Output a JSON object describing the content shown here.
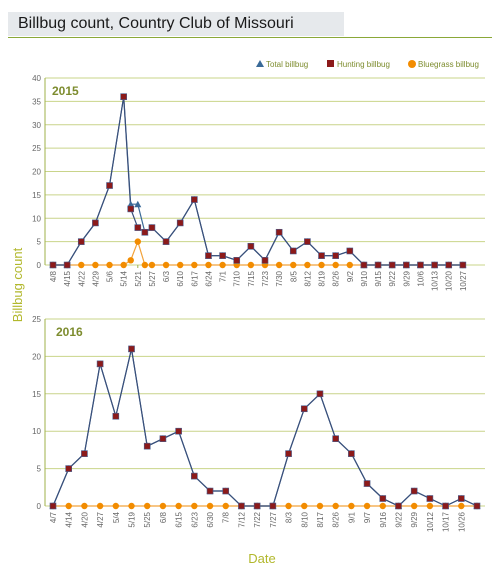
{
  "page": {
    "title": "Billbug count, Country Club of Missouri"
  },
  "colors": {
    "grid": "#c9d48a",
    "axis": "#9fb04a",
    "total": "#3a6a98",
    "hunting": "#8c1a1a",
    "bluegrass": "#f28c00",
    "line": "#3a4f7a",
    "bluegrass_line": "#f2a23a",
    "label_green": "#7d8c2e"
  },
  "chart_data": {
    "type": "line",
    "xlabel": "Date",
    "ylabel": "Billbug count",
    "legend": {
      "placement": "top-right",
      "entries": [
        "Total billbug",
        "Hunting billbug",
        "Bluegrass billbug"
      ]
    },
    "panels": [
      {
        "year": "2015",
        "ylim": [
          0,
          40
        ],
        "yticks": [
          0,
          5,
          10,
          15,
          20,
          25,
          30,
          35,
          40
        ],
        "grid": true,
        "x": [
          "4/8",
          "4/15",
          "4/22",
          "4/29",
          "5/6",
          "5/14",
          "5/21",
          "5/27",
          "6/3",
          "6/10",
          "6/17",
          "6/24",
          "7/1",
          "7/10",
          "7/15",
          "7/23",
          "7/30",
          "8/5",
          "8/12",
          "8/19",
          "8/26",
          "9/2",
          "9/10",
          "9/15",
          "9/22",
          "9/29",
          "10/6",
          "10/13",
          "10/20",
          "10/27"
        ],
        "x_index": [
          0,
          2,
          4,
          6,
          8,
          10,
          12,
          14,
          16,
          18,
          20,
          22,
          24,
          26,
          28,
          30,
          32,
          34,
          36,
          38,
          40,
          42,
          44,
          46,
          48,
          50,
          52,
          54,
          56,
          58
        ],
        "x_slots": 60,
        "series": [
          {
            "name": "Total billbug",
            "points": [
              [
                0,
                0
              ],
              [
                2,
                0
              ],
              [
                4,
                5
              ],
              [
                6,
                9
              ],
              [
                8,
                17
              ],
              [
                10,
                36
              ],
              [
                11,
                13
              ],
              [
                12,
                13
              ],
              [
                13,
                7
              ],
              [
                14,
                8
              ],
              [
                16,
                5
              ],
              [
                18,
                9
              ],
              [
                20,
                14
              ],
              [
                22,
                2
              ],
              [
                24,
                2
              ],
              [
                26,
                1
              ],
              [
                28,
                4
              ],
              [
                30,
                1
              ],
              [
                32,
                7
              ],
              [
                34,
                3
              ],
              [
                36,
                5
              ],
              [
                38,
                2
              ],
              [
                40,
                2
              ],
              [
                42,
                3
              ],
              [
                44,
                0
              ],
              [
                46,
                0
              ],
              [
                48,
                0
              ],
              [
                50,
                0
              ],
              [
                52,
                0
              ],
              [
                54,
                0
              ],
              [
                56,
                0
              ],
              [
                58,
                0
              ]
            ]
          },
          {
            "name": "Hunting billbug",
            "points": [
              [
                0,
                0
              ],
              [
                2,
                0
              ],
              [
                4,
                5
              ],
              [
                6,
                9
              ],
              [
                8,
                17
              ],
              [
                10,
                36
              ],
              [
                11,
                12
              ],
              [
                12,
                8
              ],
              [
                13,
                7
              ],
              [
                14,
                8
              ],
              [
                16,
                5
              ],
              [
                18,
                9
              ],
              [
                20,
                14
              ],
              [
                22,
                2
              ],
              [
                24,
                2
              ],
              [
                26,
                1
              ],
              [
                28,
                4
              ],
              [
                30,
                1
              ],
              [
                32,
                7
              ],
              [
                34,
                3
              ],
              [
                36,
                5
              ],
              [
                38,
                2
              ],
              [
                40,
                2
              ],
              [
                42,
                3
              ],
              [
                44,
                0
              ],
              [
                46,
                0
              ],
              [
                48,
                0
              ],
              [
                50,
                0
              ],
              [
                52,
                0
              ],
              [
                54,
                0
              ],
              [
                56,
                0
              ],
              [
                58,
                0
              ]
            ]
          },
          {
            "name": "Bluegrass billbug",
            "points": [
              [
                0,
                0
              ],
              [
                2,
                0
              ],
              [
                4,
                0
              ],
              [
                6,
                0
              ],
              [
                8,
                0
              ],
              [
                10,
                0
              ],
              [
                11,
                1
              ],
              [
                12,
                5
              ],
              [
                13,
                0
              ],
              [
                14,
                0
              ],
              [
                16,
                0
              ],
              [
                18,
                0
              ],
              [
                20,
                0
              ],
              [
                22,
                0
              ],
              [
                24,
                0
              ],
              [
                26,
                0
              ],
              [
                28,
                0
              ],
              [
                30,
                0
              ],
              [
                32,
                0
              ],
              [
                34,
                0
              ],
              [
                36,
                0
              ],
              [
                38,
                0
              ],
              [
                40,
                0
              ],
              [
                42,
                0
              ],
              [
                44,
                0
              ],
              [
                46,
                0
              ],
              [
                48,
                0
              ],
              [
                50,
                0
              ],
              [
                52,
                0
              ],
              [
                54,
                0
              ],
              [
                56,
                0
              ],
              [
                58,
                0
              ]
            ]
          }
        ]
      },
      {
        "year": "2016",
        "ylim": [
          0,
          25
        ],
        "yticks": [
          0,
          5,
          10,
          15,
          20,
          25
        ],
        "grid": true,
        "x": [
          "4/7",
          "4/14",
          "4/20",
          "4/27",
          "5/4",
          "5/19",
          "5/25",
          "6/8",
          "6/15",
          "6/23",
          "6/30",
          "7/8",
          "7/12",
          "7/22",
          "7/27",
          "8/3",
          "8/10",
          "8/17",
          "8/26",
          "9/1",
          "9/7",
          "9/16",
          "9/22",
          "9/29",
          "10/12",
          "10/17",
          "10/26"
        ],
        "x_index": [
          0,
          2,
          4,
          6,
          8,
          10,
          12,
          14,
          16,
          18,
          20,
          22,
          24,
          26,
          28,
          30,
          32,
          34,
          36,
          38,
          40,
          42,
          44,
          46,
          48,
          50,
          52
        ],
        "x_slots": 54,
        "series": [
          {
            "name": "Total billbug",
            "points": [
              [
                0,
                0
              ],
              [
                2,
                5
              ],
              [
                4,
                7
              ],
              [
                6,
                19
              ],
              [
                8,
                12
              ],
              [
                10,
                21
              ],
              [
                12,
                8
              ],
              [
                14,
                9
              ],
              [
                16,
                10
              ],
              [
                18,
                4
              ],
              [
                20,
                2
              ],
              [
                22,
                2
              ],
              [
                24,
                0
              ],
              [
                26,
                0
              ],
              [
                28,
                0
              ],
              [
                30,
                7
              ],
              [
                32,
                13
              ],
              [
                34,
                15
              ],
              [
                36,
                9
              ],
              [
                38,
                7
              ],
              [
                40,
                3
              ],
              [
                42,
                1
              ],
              [
                44,
                0
              ],
              [
                46,
                2
              ],
              [
                48,
                1
              ],
              [
                50,
                0
              ],
              [
                52,
                1
              ],
              [
                54,
                0
              ]
            ]
          },
          {
            "name": "Hunting billbug",
            "points": [
              [
                0,
                0
              ],
              [
                2,
                5
              ],
              [
                4,
                7
              ],
              [
                6,
                19
              ],
              [
                8,
                12
              ],
              [
                10,
                21
              ],
              [
                12,
                8
              ],
              [
                14,
                9
              ],
              [
                16,
                10
              ],
              [
                18,
                4
              ],
              [
                20,
                2
              ],
              [
                22,
                2
              ],
              [
                24,
                0
              ],
              [
                26,
                0
              ],
              [
                28,
                0
              ],
              [
                30,
                7
              ],
              [
                32,
                13
              ],
              [
                34,
                15
              ],
              [
                36,
                9
              ],
              [
                38,
                7
              ],
              [
                40,
                3
              ],
              [
                42,
                1
              ],
              [
                44,
                0
              ],
              [
                46,
                2
              ],
              [
                48,
                1
              ],
              [
                50,
                0
              ],
              [
                52,
                1
              ],
              [
                54,
                0
              ]
            ]
          },
          {
            "name": "Bluegrass billbug",
            "points": [
              [
                0,
                0
              ],
              [
                2,
                0
              ],
              [
                4,
                0
              ],
              [
                6,
                0
              ],
              [
                8,
                0
              ],
              [
                10,
                0
              ],
              [
                12,
                0
              ],
              [
                14,
                0
              ],
              [
                16,
                0
              ],
              [
                18,
                0
              ],
              [
                20,
                0
              ],
              [
                22,
                0
              ],
              [
                24,
                0
              ],
              [
                26,
                0
              ],
              [
                28,
                0
              ],
              [
                30,
                0
              ],
              [
                32,
                0
              ],
              [
                34,
                0
              ],
              [
                36,
                0
              ],
              [
                38,
                0
              ],
              [
                40,
                0
              ],
              [
                42,
                0
              ],
              [
                44,
                0
              ],
              [
                46,
                0
              ],
              [
                48,
                0
              ],
              [
                50,
                0
              ],
              [
                52,
                0
              ],
              [
                54,
                0
              ]
            ]
          }
        ]
      }
    ]
  }
}
